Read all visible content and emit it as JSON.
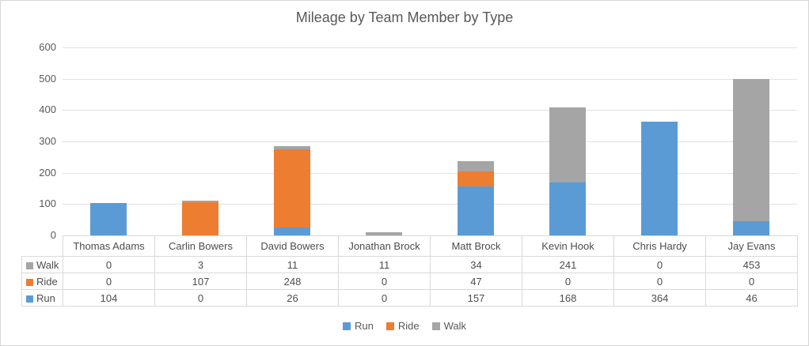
{
  "title": "Mileage by Team Member by Type",
  "colors": {
    "run": "#5B9BD5",
    "ride": "#ED7D31",
    "walk": "#A5A5A5",
    "text": "#595959",
    "gridline": "#E2E2E2",
    "table_border": "#D9D9D9"
  },
  "chart_data": {
    "type": "bar",
    "stacked": true,
    "title": "Mileage by Team Member by Type",
    "xlabel": "",
    "ylabel": "",
    "ylim": [
      0,
      600
    ],
    "yticks": [
      0,
      100,
      200,
      300,
      400,
      500,
      600
    ],
    "grid": true,
    "legend_position": "bottom",
    "categories": [
      "Thomas Adams",
      "Carlin Bowers",
      "David Bowers",
      "Jonathan Brock",
      "Matt Brock",
      "Kevin Hook",
      "Chris Hardy",
      "Jay Evans"
    ],
    "series": [
      {
        "name": "Run",
        "color": "#5B9BD5",
        "values": [
          104,
          0,
          26,
          0,
          157,
          168,
          364,
          46
        ]
      },
      {
        "name": "Ride",
        "color": "#ED7D31",
        "values": [
          0,
          107,
          248,
          0,
          47,
          0,
          0,
          0
        ]
      },
      {
        "name": "Walk",
        "color": "#A5A5A5",
        "values": [
          0,
          3,
          11,
          11,
          34,
          241,
          0,
          453
        ]
      }
    ],
    "stack_order": [
      "Run",
      "Ride",
      "Walk"
    ],
    "table_row_order": [
      "Walk",
      "Ride",
      "Run"
    ],
    "legend_order": [
      "Run",
      "Ride",
      "Walk"
    ]
  }
}
